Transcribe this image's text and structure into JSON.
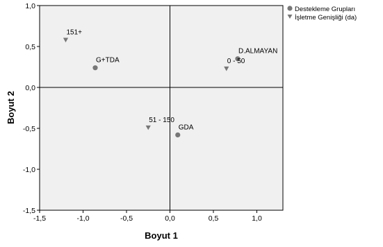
{
  "chart_data": {
    "type": "scatter",
    "xlabel": "Boyut 1",
    "ylabel": "Boyut 2",
    "xlim": [
      -1.5,
      1.3
    ],
    "ylim": [
      -1.5,
      1.0
    ],
    "x_ticks": [
      -1.5,
      -1.0,
      -0.5,
      0.0,
      0.5,
      1.0
    ],
    "x_tick_labels": [
      "-1,5",
      "-1,0",
      "-0,5",
      "0,0",
      "0,5",
      "1,0"
    ],
    "y_ticks": [
      1.0,
      0.5,
      0.0,
      -0.5,
      -1.0,
      -1.5
    ],
    "y_tick_labels": [
      "1,0",
      "0,5",
      "0,0",
      "-0,5",
      "-1,0",
      "-1,5"
    ],
    "reference_lines": {
      "x": 0.0,
      "y": 0.0
    },
    "plot_background": "#f0f0f0",
    "marker_color": "#777777",
    "grid": false,
    "legend_position": "top-right",
    "series": [
      {
        "name": "Destekleme Grupları",
        "marker": "circle",
        "points": [
          {
            "label": "G+TDA",
            "x": -0.86,
            "y": 0.24
          },
          {
            "label": "D.ALMAYAN",
            "x": 0.78,
            "y": 0.35
          },
          {
            "label": "GDA",
            "x": 0.09,
            "y": -0.58
          }
        ]
      },
      {
        "name": "İşletme Genişliği (da)",
        "marker": "triangle-down",
        "points": [
          {
            "label": "151+",
            "x": -1.2,
            "y": 0.58
          },
          {
            "label": "0 - 50",
            "x": 0.65,
            "y": 0.23
          },
          {
            "label": "51 - 150",
            "x": -0.25,
            "y": -0.49
          }
        ]
      }
    ]
  }
}
